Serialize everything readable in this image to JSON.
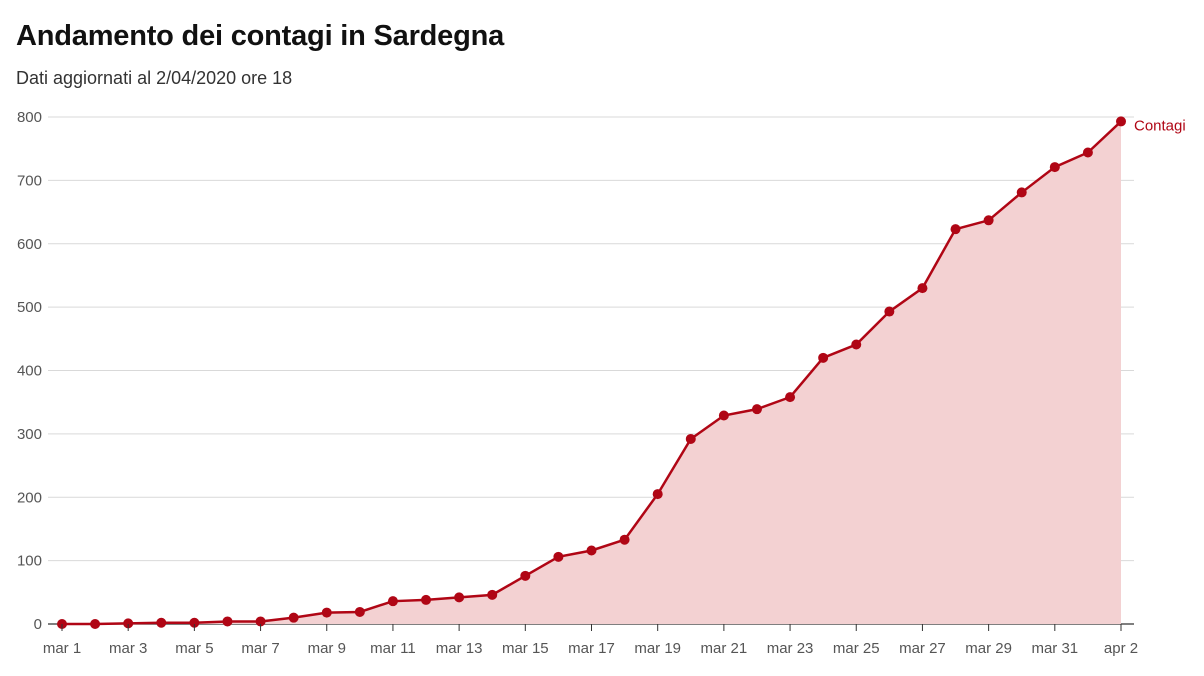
{
  "chart_data": {
    "type": "area",
    "title": "Andamento dei contagi in Sardegna",
    "subtitle": "Dati aggiornati al 2/04/2020 ore 18",
    "xlabel": "",
    "ylabel": "",
    "ylim": [
      0,
      800
    ],
    "yticks": [
      0,
      100,
      200,
      300,
      400,
      500,
      600,
      700,
      800
    ],
    "x": [
      "mar 1",
      "mar 2",
      "mar 3",
      "mar 4",
      "mar 5",
      "mar 6",
      "mar 7",
      "mar 8",
      "mar 9",
      "mar 10",
      "mar 11",
      "mar 12",
      "mar 13",
      "mar 14",
      "mar 15",
      "mar 16",
      "mar 17",
      "mar 18",
      "mar 19",
      "mar 20",
      "mar 21",
      "mar 22",
      "mar 23",
      "mar 24",
      "mar 25",
      "mar 26",
      "mar 27",
      "mar 28",
      "mar 29",
      "mar 30",
      "mar 31",
      "apr 1",
      "apr 2"
    ],
    "xtick_labels": [
      "mar 1",
      "mar 3",
      "mar 5",
      "mar 7",
      "mar 9",
      "mar 11",
      "mar 13",
      "mar 15",
      "mar 17",
      "mar 19",
      "mar 21",
      "mar 23",
      "mar 25",
      "mar 27",
      "mar 29",
      "mar 31",
      "apr 2"
    ],
    "series": [
      {
        "name": "Contagi",
        "color": "#b00615",
        "fill_color": "#f3d1d2",
        "values": [
          0,
          0,
          1,
          2,
          2,
          4,
          4,
          10,
          18,
          19,
          36,
          38,
          42,
          46,
          76,
          106,
          116,
          133,
          205,
          292,
          329,
          339,
          358,
          420,
          441,
          493,
          530,
          623,
          637,
          681,
          721,
          744,
          793
        ]
      }
    ],
    "grid": true,
    "legend": "none"
  }
}
